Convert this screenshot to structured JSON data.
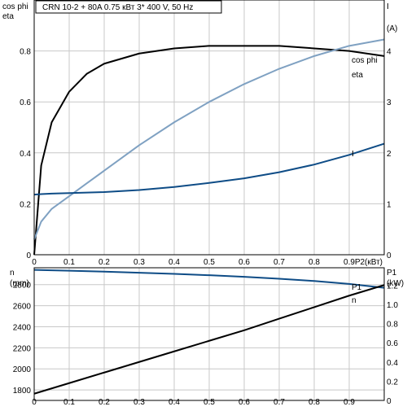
{
  "header": {
    "text": "CRN 10-2 + 80A    0.75 кВт   3* 400 V, 50 Hz"
  },
  "colors": {
    "eta": "#000000",
    "cos_phi": "#7fa1c2",
    "current": "#0e4c86",
    "n": "#0e4c86",
    "p1": "#000000",
    "grid": "#c8c8c8",
    "frame": "#000000"
  },
  "chart_data": [
    {
      "type": "line",
      "x": [
        0,
        0.02,
        0.05,
        0.1,
        0.15,
        0.2,
        0.3,
        0.4,
        0.5,
        0.6,
        0.7,
        0.8,
        0.9,
        1.0
      ],
      "x_ticks": [
        "0",
        "0.1",
        "0.2",
        "0.3",
        "0.4",
        "0.5",
        "0.6",
        "0.7",
        "0.8",
        "0.9"
      ],
      "xlim": [
        0,
        1.0
      ],
      "x_axis_label": "P2(кВт)",
      "left_axis": {
        "labels": [
          "cos phi",
          "eta"
        ],
        "ylim": [
          0,
          1.0
        ],
        "ticks": [
          "0",
          "0.2",
          "0.4",
          "0.6",
          "0.8"
        ]
      },
      "right_axis": {
        "labels": [
          "I",
          "(A)"
        ],
        "ylim": [
          0,
          5
        ],
        "ticks": [
          "0",
          "1",
          "2",
          "3",
          "4"
        ]
      },
      "series": [
        {
          "name": "eta",
          "axis": "left",
          "values": [
            0,
            0.35,
            0.52,
            0.64,
            0.71,
            0.75,
            0.79,
            0.81,
            0.82,
            0.82,
            0.82,
            0.81,
            0.8,
            0.78
          ]
        },
        {
          "name": "cos phi",
          "axis": "left",
          "values": [
            0.06,
            0.13,
            0.18,
            0.23,
            0.28,
            0.33,
            0.43,
            0.52,
            0.6,
            0.67,
            0.73,
            0.78,
            0.82,
            0.845
          ]
        },
        {
          "name": "I",
          "axis": "right",
          "values": [
            1.18,
            1.19,
            1.2,
            1.21,
            1.22,
            1.23,
            1.27,
            1.33,
            1.41,
            1.5,
            1.62,
            1.77,
            1.96,
            2.18
          ]
        }
      ],
      "grid": true
    },
    {
      "type": "line",
      "x": [
        0,
        0.1,
        0.2,
        0.3,
        0.4,
        0.5,
        0.6,
        0.7,
        0.8,
        0.9,
        1.0
      ],
      "x_ticks": [
        "0",
        "0.1",
        "0.2",
        "0.3",
        "0.4",
        "0.5",
        "0.6",
        "0.7",
        "0.8",
        "0.9"
      ],
      "xlim": [
        0,
        1.0
      ],
      "left_axis": {
        "labels": [
          "n",
          "(rpm)"
        ],
        "ylim": [
          1700,
          2960
        ],
        "ticks": [
          "1800",
          "2000",
          "2200",
          "2400",
          "2600",
          "2800"
        ]
      },
      "right_axis": {
        "labels": [
          "P1",
          "(kW)"
        ],
        "ylim": [
          0,
          1.38
        ],
        "ticks": [
          "0",
          "0.2",
          "0.4",
          "0.6",
          "0.8",
          "1.0",
          "1.2"
        ]
      },
      "series": [
        {
          "name": "n",
          "axis": "left",
          "values": [
            2940,
            2932,
            2923,
            2913,
            2902,
            2889,
            2874,
            2856,
            2834,
            2806,
            2770
          ]
        },
        {
          "name": "P1",
          "axis": "right",
          "values": [
            0.07,
            0.18,
            0.29,
            0.4,
            0.51,
            0.62,
            0.73,
            0.85,
            0.97,
            1.09,
            1.2
          ]
        }
      ],
      "grid": true
    }
  ]
}
